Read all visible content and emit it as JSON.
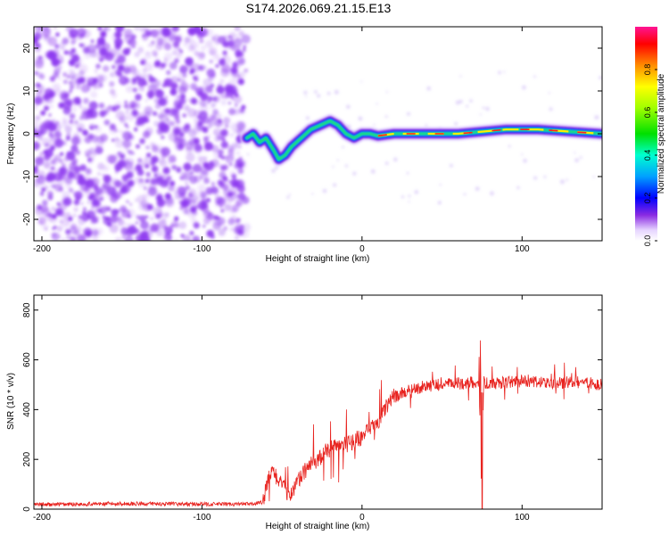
{
  "title": "S174.2026.069.21.15.E13",
  "colors": {
    "noise": "#8f3cf0",
    "snr_line": "#e8231f",
    "axis": "#000000"
  },
  "chart_data": [
    {
      "type": "heatmap",
      "xlabel": "Height of straight line (km)",
      "ylabel": "Frequency (Hz)",
      "xlim": [
        -205,
        150
      ],
      "ylim": [
        -25,
        25
      ],
      "xticks": [
        -200,
        -100,
        0,
        100
      ],
      "yticks": [
        -20,
        -10,
        0,
        10,
        20
      ],
      "colorbar": {
        "label": "Normalized spectral amplitude",
        "range": [
          0,
          1
        ],
        "ticks": [
          0.0,
          0.2,
          0.4,
          0.6,
          0.8
        ]
      },
      "noise_region_x": [
        -205,
        -72
      ],
      "ridge": [
        {
          "x": -72,
          "y": -1
        },
        {
          "x": -68,
          "y": 0
        },
        {
          "x": -64,
          "y": -2
        },
        {
          "x": -60,
          "y": -1
        },
        {
          "x": -55,
          "y": -4
        },
        {
          "x": -52,
          "y": -6
        },
        {
          "x": -48,
          "y": -5
        },
        {
          "x": -44,
          "y": -3
        },
        {
          "x": -38,
          "y": -1
        },
        {
          "x": -32,
          "y": 1
        },
        {
          "x": -26,
          "y": 2
        },
        {
          "x": -20,
          "y": 3
        },
        {
          "x": -15,
          "y": 2
        },
        {
          "x": -10,
          "y": 0
        },
        {
          "x": -5,
          "y": -1
        },
        {
          "x": 0,
          "y": 0
        },
        {
          "x": 5,
          "y": 0
        },
        {
          "x": 10,
          "y": -0.5
        },
        {
          "x": 20,
          "y": 0
        },
        {
          "x": 40,
          "y": 0
        },
        {
          "x": 60,
          "y": 0
        },
        {
          "x": 75,
          "y": 0.5
        },
        {
          "x": 90,
          "y": 1
        },
        {
          "x": 110,
          "y": 1
        },
        {
          "x": 130,
          "y": 0.5
        },
        {
          "x": 150,
          "y": 0
        }
      ]
    },
    {
      "type": "line",
      "xlabel": "Height of straight line (km)",
      "ylabel": "SNR (10 * v/v)",
      "xlim": [
        -205,
        150
      ],
      "ylim": [
        0,
        860
      ],
      "xticks": [
        -200,
        -100,
        0,
        100
      ],
      "yticks": [
        0,
        200,
        400,
        600,
        800
      ],
      "series": [
        {
          "x": [
            -205,
            -150,
            -100,
            -70,
            -62,
            -58,
            -55,
            -50,
            -45,
            -40,
            -35,
            -30,
            -25,
            -20,
            -10,
            0,
            10,
            15,
            20,
            30,
            40,
            50,
            60,
            70,
            74,
            75,
            76,
            80,
            90,
            100,
            110,
            120,
            130,
            140,
            150
          ],
          "values": [
            18,
            22,
            20,
            20,
            28,
            130,
            150,
            90,
            60,
            110,
            160,
            190,
            210,
            240,
            260,
            290,
            350,
            410,
            450,
            480,
            495,
            500,
            505,
            510,
            510,
            50,
            510,
            500,
            510,
            515,
            510,
            505,
            510,
            510,
            500
          ]
        }
      ]
    }
  ]
}
